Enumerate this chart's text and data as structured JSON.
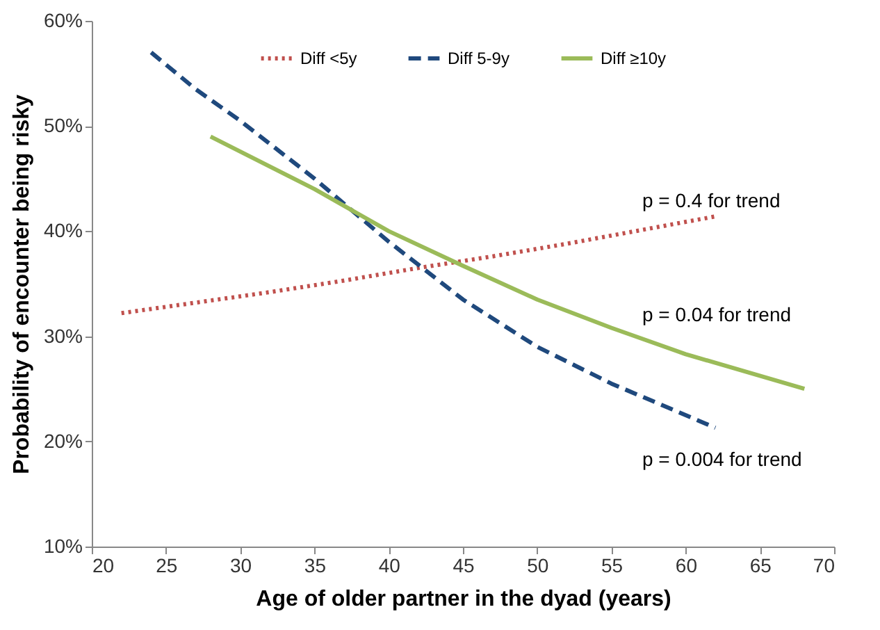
{
  "chart_data": {
    "type": "line",
    "xlabel": "Age of older partner in the dyad (years)",
    "ylabel": "Probability of encounter being risky",
    "xlim": [
      20,
      70
    ],
    "xticks": [
      20,
      25,
      30,
      35,
      40,
      45,
      50,
      55,
      60,
      65,
      70
    ],
    "ylim": [
      10,
      60
    ],
    "yticks": [
      {
        "value": 10,
        "label": "10%"
      },
      {
        "value": 20,
        "label": "20%"
      },
      {
        "value": 30,
        "label": "30%"
      },
      {
        "value": 40,
        "label": "40%"
      },
      {
        "value": 50,
        "label": "50%"
      },
      {
        "value": 60,
        "label": "60%"
      }
    ],
    "grid": false,
    "legend": "top",
    "marker": "none",
    "series": [
      {
        "name": "Diff <5y",
        "color": "#c0504d",
        "line_style": "dotted",
        "x": [
          22,
          27,
          32,
          37,
          42,
          47,
          52,
          57,
          62
        ],
        "values": [
          32.2,
          33.2,
          34.2,
          35.3,
          36.5,
          37.6,
          38.8,
          40.1,
          41.4
        ]
      },
      {
        "name": "Diff 5-9y",
        "color": "#1f497d",
        "line_style": "dashed",
        "x": [
          24,
          27,
          30,
          35,
          40,
          45,
          50,
          55,
          62
        ],
        "values": [
          57,
          53.5,
          50.5,
          45,
          39,
          33.5,
          29,
          25.5,
          21.3
        ]
      },
      {
        "name": "Diff ≥10y",
        "color": "#9bbb59",
        "line_style": "solid",
        "x": [
          28,
          35,
          40,
          45,
          50,
          55,
          60,
          68
        ],
        "values": [
          49,
          44,
          40,
          36.7,
          33.5,
          30.8,
          28.3,
          25
        ]
      }
    ],
    "annotations": [
      "p = 0.4 for trend",
      "p = 0.04 for trend",
      "p = 0.004 for trend"
    ]
  }
}
